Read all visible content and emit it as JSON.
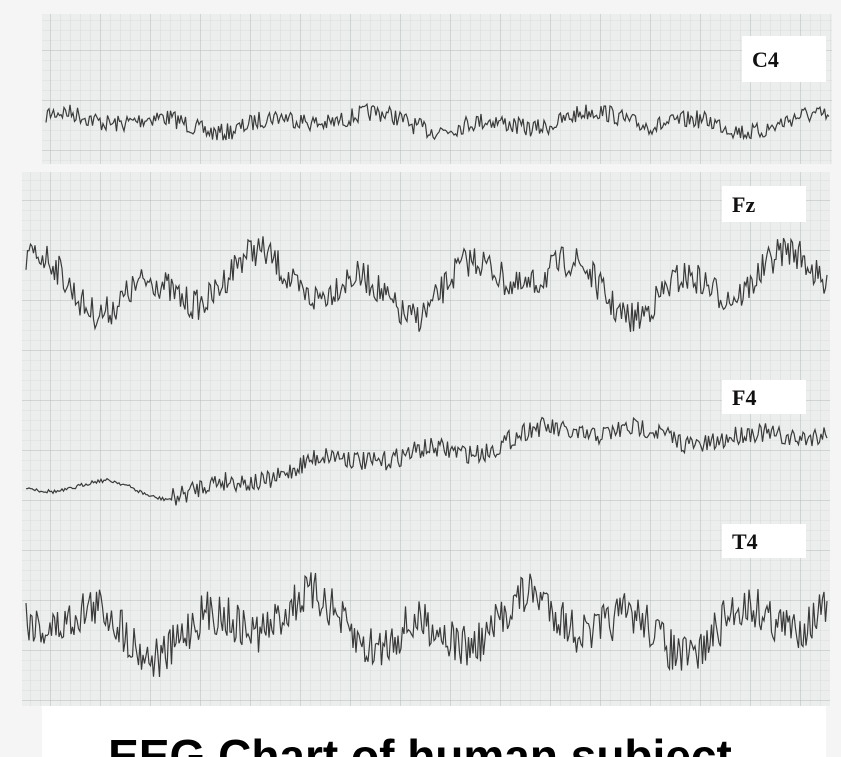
{
  "channels": [
    {
      "label": "C4"
    },
    {
      "label": "Fz"
    },
    {
      "label": "F4"
    },
    {
      "label": "T4"
    }
  ],
  "caption": "EEG Chart of human subject"
}
